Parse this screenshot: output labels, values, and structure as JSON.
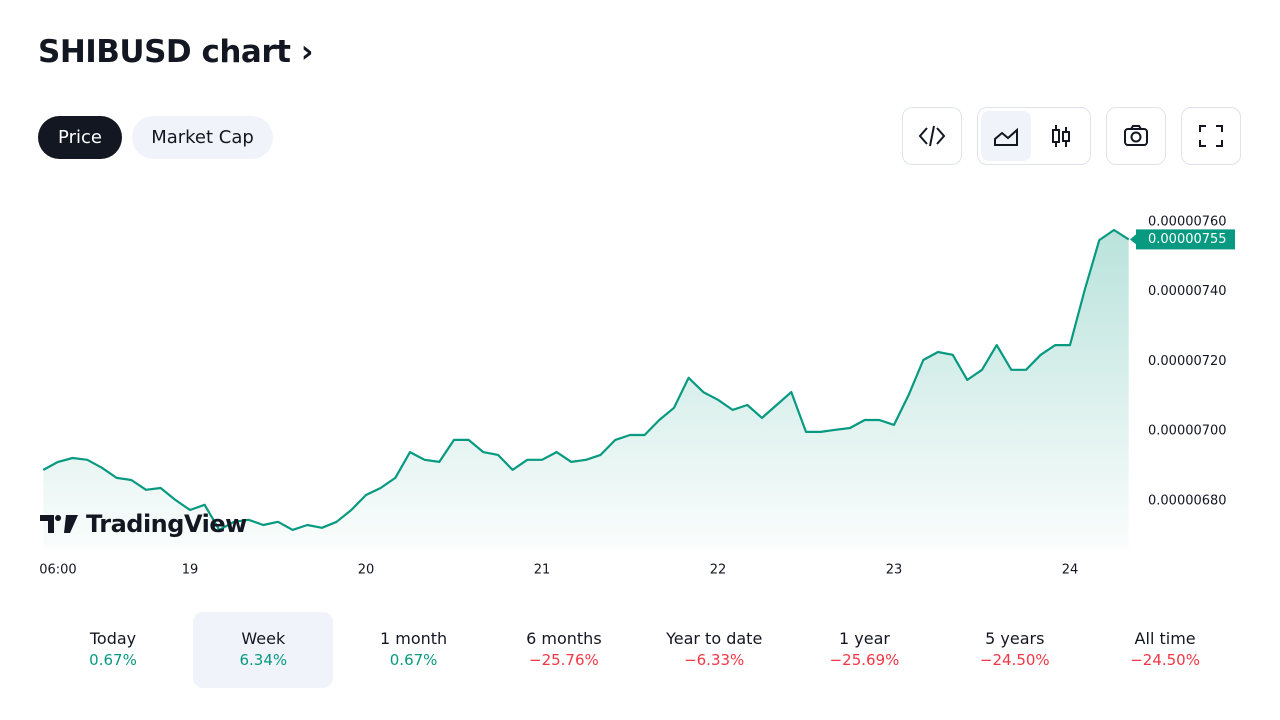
{
  "header": {
    "title": "SHIBUSD chart"
  },
  "tabs": {
    "items": [
      "Price",
      "Market Cap"
    ],
    "selected": 0
  },
  "chart_data": {
    "type": "line",
    "color": "#089981",
    "grid": false,
    "watermark": "TradingView",
    "price_label": "0.00000755",
    "categories": [
      null,
      "06:00",
      null,
      null,
      null,
      null,
      null,
      null,
      null,
      null,
      "19",
      null,
      null,
      null,
      null,
      null,
      null,
      null,
      null,
      null,
      null,
      null,
      "20",
      null,
      null,
      null,
      null,
      null,
      null,
      null,
      null,
      null,
      null,
      null,
      "21",
      null,
      null,
      null,
      null,
      null,
      null,
      null,
      null,
      null,
      null,
      null,
      "22",
      null,
      null,
      null,
      null,
      null,
      null,
      null,
      null,
      null,
      null,
      null,
      "23",
      null,
      null,
      null,
      null,
      null,
      null,
      null,
      null,
      null,
      null,
      null,
      "24",
      null,
      null,
      null,
      null
    ],
    "values": [
      6.889e-06,
      6.912e-06,
      6.923e-06,
      6.918e-06,
      6.895e-06,
      6.866e-06,
      6.86e-06,
      6.832e-06,
      6.837e-06,
      6.803e-06,
      6.774e-06,
      6.789e-06,
      6.717e-06,
      6.74e-06,
      6.746e-06,
      6.731e-06,
      6.74e-06,
      6.717e-06,
      6.731e-06,
      6.723e-06,
      6.74e-06,
      6.774e-06,
      6.817e-06,
      6.837e-06,
      6.866e-06,
      6.94e-06,
      6.918e-06,
      6.912e-06,
      6.975e-06,
      6.975e-06,
      6.94e-06,
      6.932e-06,
      6.889e-06,
      6.918e-06,
      6.918e-06,
      6.94e-06,
      6.912e-06,
      6.918e-06,
      6.932e-06,
      6.975e-06,
      6.989e-06,
      6.989e-06,
      7.032e-06,
      7.067e-06,
      7.153e-06,
      7.112e-06,
      7.09e-06,
      7.061e-06,
      7.075e-06,
      7.038e-06,
      7.075e-06,
      7.112e-06,
      6.998e-06,
      6.998e-06,
      7.004e-06,
      7.009e-06,
      7.032e-06,
      7.032e-06,
      7.018e-06,
      7.104e-06,
      7.204e-06,
      7.227e-06,
      7.219e-06,
      7.147e-06,
      7.176e-06,
      7.247e-06,
      7.176e-06,
      7.176e-06,
      7.219e-06,
      7.247e-06,
      7.247e-06,
      7.405e-06,
      7.548e-06,
      7.577e-06,
      7.55e-06
    ],
    "ylim": [
      6.665e-06,
      7.706e-06
    ],
    "yticks": [
      {
        "value": 6.8e-06,
        "label": "0.00000680"
      },
      {
        "value": 7e-06,
        "label": "0.00000700"
      },
      {
        "value": 7.2e-06,
        "label": "0.00000720"
      },
      {
        "value": 7.4e-06,
        "label": "0.00000740"
      },
      {
        "value": 7.6e-06,
        "label": "0.00000760"
      }
    ]
  },
  "periods": {
    "selected": 1,
    "items": [
      {
        "name": "Today",
        "change": "0.67%"
      },
      {
        "name": "Week",
        "change": "6.34%"
      },
      {
        "name": "1 month",
        "change": "0.67%"
      },
      {
        "name": "6 months",
        "change": "−25.76%"
      },
      {
        "name": "Year to date",
        "change": "−6.33%"
      },
      {
        "name": "1 year",
        "change": "−25.69%"
      },
      {
        "name": "5 years",
        "change": "−24.50%"
      },
      {
        "name": "All time",
        "change": "−24.50%"
      }
    ]
  }
}
